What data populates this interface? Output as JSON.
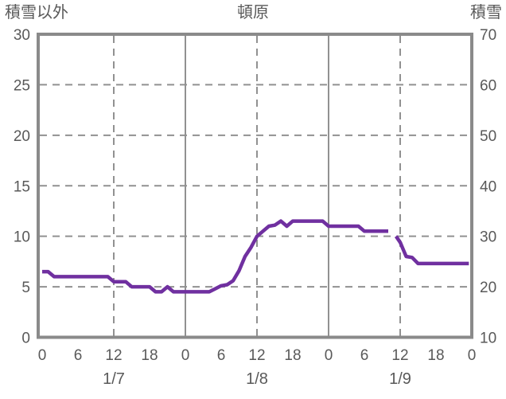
{
  "colors": {
    "line": "#7030A0",
    "border": "#8a8a8a",
    "grid": "#919191",
    "text": "#595959",
    "background": "#ffffff"
  },
  "chart_data": {
    "type": "line",
    "title": "頓原",
    "left_axis": {
      "label": "積雪以外",
      "min": 0,
      "max": 30,
      "ticks": [
        0,
        5,
        10,
        15,
        20,
        25,
        30
      ]
    },
    "right_axis": {
      "label": "積雪",
      "min": 10,
      "max": 70,
      "ticks": [
        10,
        20,
        30,
        40,
        50,
        60,
        70
      ]
    },
    "x_axis": {
      "hours_total": 72,
      "hour_tick_step": 6,
      "hour_tick_labels": [
        "0",
        "6",
        "12",
        "18",
        "0",
        "6",
        "12",
        "18",
        "0",
        "6",
        "12",
        "18",
        "0"
      ],
      "date_labels": [
        "1/7",
        "1/8",
        "1/9"
      ],
      "date_label_center_hours": [
        12,
        36,
        60
      ],
      "solid_gridline_hours": [
        24,
        48
      ],
      "dashed_gridline_hours": [
        12,
        36,
        60
      ]
    },
    "grid": {
      "horizontal_dashed_at": [
        5,
        10,
        15,
        20,
        25
      ]
    },
    "legend": "none",
    "series": [
      {
        "name": "積雪",
        "axis": "left",
        "points": [
          [
            0,
            6.5
          ],
          [
            1,
            6.5
          ],
          [
            2,
            6
          ],
          [
            3,
            6
          ],
          [
            4,
            6
          ],
          [
            5,
            6
          ],
          [
            6,
            6
          ],
          [
            7,
            6
          ],
          [
            8,
            6
          ],
          [
            9,
            6
          ],
          [
            10,
            6
          ],
          [
            11,
            6
          ],
          [
            12,
            5.5
          ],
          [
            13,
            5.5
          ],
          [
            14,
            5.5
          ],
          [
            15,
            5
          ],
          [
            16,
            5
          ],
          [
            17,
            5
          ],
          [
            18,
            5
          ],
          [
            19,
            4.5
          ],
          [
            20,
            4.5
          ],
          [
            21,
            5
          ],
          [
            22,
            4.5
          ],
          [
            23,
            4.5
          ],
          [
            24,
            4.5
          ],
          [
            25,
            4.5
          ],
          [
            26,
            4.5
          ],
          [
            27,
            4.5
          ],
          [
            28,
            4.5
          ],
          [
            29,
            4.8
          ],
          [
            30,
            5.1
          ],
          [
            31,
            5.2
          ],
          [
            32,
            5.6
          ],
          [
            33,
            6.6
          ],
          [
            34,
            8
          ],
          [
            35,
            8.9
          ],
          [
            36,
            10
          ],
          [
            37,
            10.5
          ],
          [
            38,
            11
          ],
          [
            39,
            11.1
          ],
          [
            40,
            11.5
          ],
          [
            41,
            11
          ],
          [
            42,
            11.5
          ],
          [
            43,
            11.5
          ],
          [
            44,
            11.5
          ],
          [
            45,
            11.5
          ],
          [
            46,
            11.5
          ],
          [
            47,
            11.5
          ],
          [
            48,
            11
          ],
          [
            49,
            11
          ],
          [
            50,
            11
          ],
          [
            51,
            11
          ],
          [
            52,
            11
          ],
          [
            53,
            11
          ],
          [
            54,
            10.5
          ],
          [
            55,
            10.5
          ],
          [
            56,
            10.5
          ],
          [
            57,
            10.5
          ],
          [
            58,
            10.5
          ],
          null,
          [
            59.3,
            10
          ],
          [
            60,
            9.4
          ],
          [
            61,
            8
          ],
          [
            62,
            7.9
          ],
          [
            63,
            7.3
          ],
          [
            64,
            7.3
          ],
          [
            65,
            7.3
          ],
          [
            66,
            7.3
          ],
          [
            67,
            7.3
          ],
          [
            68,
            7.3
          ],
          [
            69,
            7.3
          ],
          [
            70,
            7.3
          ],
          [
            71.5,
            7.3
          ]
        ]
      }
    ]
  }
}
